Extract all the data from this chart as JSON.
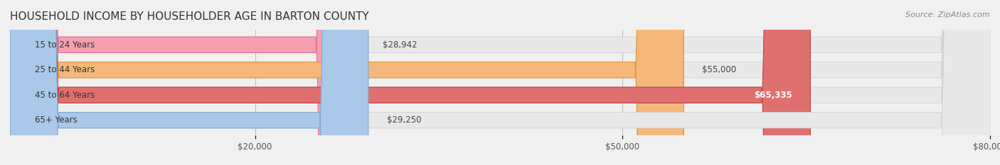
{
  "title": "HOUSEHOLD INCOME BY HOUSEHOLDER AGE IN BARTON COUNTY",
  "source": "Source: ZipAtlas.com",
  "categories": [
    "15 to 24 Years",
    "25 to 44 Years",
    "45 to 64 Years",
    "65+ Years"
  ],
  "values": [
    28942,
    55000,
    65335,
    29250
  ],
  "value_labels": [
    "$28,942",
    "$55,000",
    "$65,335",
    "$29,250"
  ],
  "bar_colors": [
    "#f4a0b0",
    "#f5b87a",
    "#e07070",
    "#aac8e8"
  ],
  "bar_edge_colors": [
    "#e07090",
    "#e09040",
    "#c04040",
    "#80a8d0"
  ],
  "xlim": [
    0,
    80000
  ],
  "xticks": [
    20000,
    50000,
    80000
  ],
  "xtick_labels": [
    "$20,000",
    "$50,000",
    "$80,000"
  ],
  "bg_color": "#f0f0f0",
  "bar_bg_color": "#e8e8e8",
  "title_fontsize": 11,
  "label_fontsize": 8.5,
  "value_fontsize": 8.5,
  "source_fontsize": 8
}
